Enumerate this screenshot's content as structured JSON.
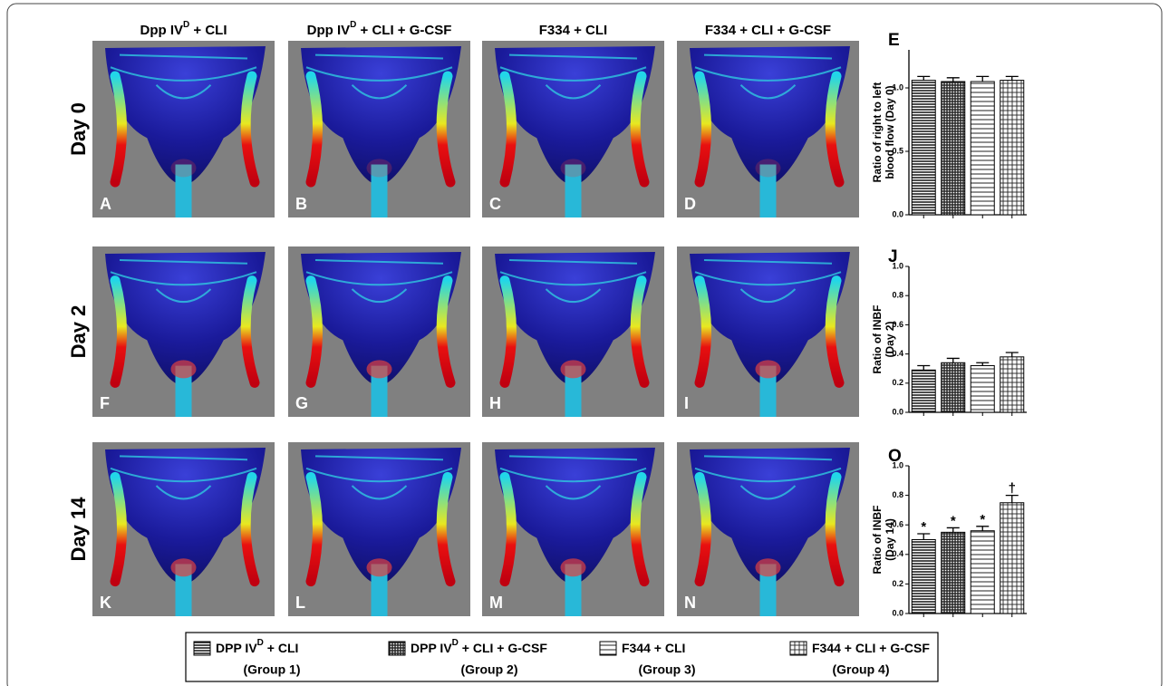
{
  "columns": [
    {
      "parts": [
        "Dpp IV",
        "D",
        " + CLI"
      ]
    },
    {
      "parts": [
        "Dpp IV",
        "D",
        " + CLI + G-CSF"
      ]
    },
    {
      "parts": [
        "F334 + CLI"
      ]
    },
    {
      "parts": [
        "F334 + CLI + G-CSF"
      ]
    }
  ],
  "rows": [
    "Day 0",
    "Day 2",
    "Day 14"
  ],
  "panels": [
    [
      "A",
      "B",
      "C",
      "D"
    ],
    [
      "F",
      "G",
      "H",
      "I"
    ],
    [
      "K",
      "L",
      "M",
      "N"
    ]
  ],
  "chart_data": [
    {
      "type": "bar",
      "panel": "E",
      "ylabel": [
        "Ratio of right to left",
        "blood flow (Day 0)"
      ],
      "values": [
        1.06,
        1.05,
        1.05,
        1.06
      ],
      "errors": [
        0.03,
        0.03,
        0.04,
        0.03
      ],
      "ylim": [
        0,
        1.3
      ],
      "yticks": [
        {
          "value": 0,
          "label": "0.0"
        },
        {
          "value": 0.5,
          "label": "0.5"
        },
        {
          "value": 1,
          "label": "1.0"
        }
      ]
    },
    {
      "type": "bar",
      "panel": "J",
      "ylabel": [
        "Ratio of INBF",
        "(Day 2)"
      ],
      "values": [
        0.29,
        0.34,
        0.32,
        0.38
      ],
      "errors": [
        0.03,
        0.03,
        0.02,
        0.03
      ],
      "ylim": [
        0,
        1
      ],
      "yticks": [
        {
          "value": 0,
          "label": "0.0"
        },
        0.2,
        0.4,
        0.6,
        0.8,
        {
          "value": 1,
          "label": "1.0"
        }
      ]
    },
    {
      "type": "bar",
      "panel": "O",
      "ylabel": [
        "Ratio of INBF",
        "(Day 14)"
      ],
      "values": [
        0.5,
        0.55,
        0.56,
        0.75
      ],
      "errors": [
        0.04,
        0.03,
        0.03,
        0.05
      ],
      "annotations": [
        "*",
        "*",
        "*",
        "†"
      ],
      "ylim": [
        0,
        1
      ],
      "yticks": [
        {
          "value": 0,
          "label": "0.0"
        },
        0.2,
        0.4,
        0.6,
        0.8,
        {
          "value": 1,
          "label": "1.0"
        }
      ]
    }
  ],
  "legend": [
    {
      "parts": [
        "DPP IV",
        "D",
        " + CLI"
      ],
      "group": "(Group 1)",
      "pattern": "hlines"
    },
    {
      "parts": [
        "DPP IV",
        "D",
        " + CLI + G-CSF"
      ],
      "group": "(Group 2)",
      "pattern": "grid"
    },
    {
      "parts": [
        "F344 + CLI"
      ],
      "group": "(Group 3)",
      "pattern": "hlines-wide"
    },
    {
      "parts": [
        "F344 + CLI + G-CSF"
      ],
      "group": "(Group 4)",
      "pattern": "grid-wide"
    }
  ]
}
